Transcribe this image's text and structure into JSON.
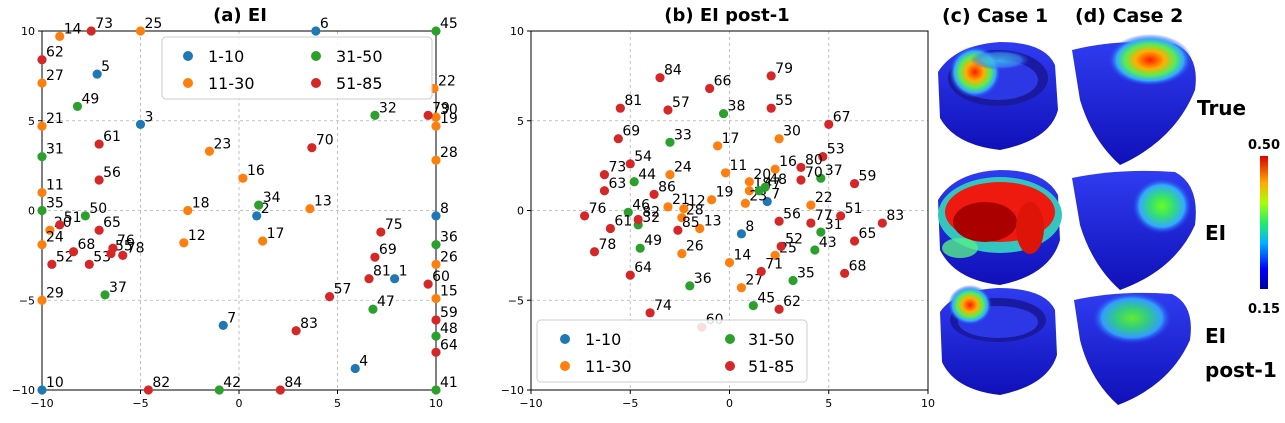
{
  "chart_data": [
    {
      "type": "scatter",
      "title": "(a) EI",
      "xlim": [
        -10,
        10
      ],
      "ylim": [
        -10,
        10
      ],
      "xticks": [
        -10,
        -5,
        0,
        5,
        10
      ],
      "yticks": [
        -10,
        -5,
        0,
        5,
        10
      ],
      "grid": true,
      "legend": {
        "placement": "top-right",
        "items": [
          {
            "label": "1-10",
            "color": "#1f77b4"
          },
          {
            "label": "11-30",
            "color": "#ff7f0e"
          },
          {
            "label": "31-50",
            "color": "#2ca02c"
          },
          {
            "label": "51-85",
            "color": "#d62728"
          }
        ]
      },
      "points": [
        {
          "id": "1",
          "x": 7.9,
          "y": -3.8
        },
        {
          "id": "2",
          "x": 0.9,
          "y": -0.3
        },
        {
          "id": "3",
          "x": -5.0,
          "y": 4.8
        },
        {
          "id": "4",
          "x": 5.9,
          "y": -8.8
        },
        {
          "id": "5",
          "x": -7.2,
          "y": 7.6
        },
        {
          "id": "6",
          "x": 3.9,
          "y": 10.0
        },
        {
          "id": "7",
          "x": -0.8,
          "y": -6.4
        },
        {
          "id": "8",
          "x": 10.0,
          "y": -0.3
        },
        {
          "id": "10",
          "x": -10.0,
          "y": -10.0
        },
        {
          "id": "11",
          "x": -10.0,
          "y": 1.0
        },
        {
          "id": "12",
          "x": -2.8,
          "y": -1.8
        },
        {
          "id": "13",
          "x": 3.6,
          "y": 0.1
        },
        {
          "id": "14",
          "x": -9.1,
          "y": 9.7
        },
        {
          "id": "15",
          "x": 10.0,
          "y": -4.9
        },
        {
          "id": "16",
          "x": 0.2,
          "y": 1.8
        },
        {
          "id": "17",
          "x": 1.2,
          "y": -1.7
        },
        {
          "id": "18",
          "x": -2.6,
          "y": 0.0
        },
        {
          "id": "19",
          "x": 10.0,
          "y": 4.7
        },
        {
          "id": "20",
          "x": -9.6,
          "y": -1.1
        },
        {
          "id": "21",
          "x": -10.0,
          "y": 4.7
        },
        {
          "id": "22",
          "x": 9.9,
          "y": 6.8
        },
        {
          "id": "23",
          "x": -1.5,
          "y": 3.3
        },
        {
          "id": "24",
          "x": -10.0,
          "y": -1.9
        },
        {
          "id": "25",
          "x": -5.0,
          "y": 10.0
        },
        {
          "id": "26",
          "x": 10.0,
          "y": -3.0
        },
        {
          "id": "27",
          "x": -10.0,
          "y": 7.1
        },
        {
          "id": "28",
          "x": 10.0,
          "y": 2.8
        },
        {
          "id": "29",
          "x": -10.0,
          "y": -5.0
        },
        {
          "id": "30",
          "x": 10.0,
          "y": 5.2
        },
        {
          "id": "31",
          "x": -10.0,
          "y": 3.0
        },
        {
          "id": "32",
          "x": 6.9,
          "y": 5.3
        },
        {
          "id": "34",
          "x": 1.0,
          "y": 0.3
        },
        {
          "id": "35",
          "x": -10.0,
          "y": 0.0
        },
        {
          "id": "36",
          "x": 10.0,
          "y": -1.9
        },
        {
          "id": "37",
          "x": -6.8,
          "y": -4.7
        },
        {
          "id": "41",
          "x": 10.0,
          "y": -10.0
        },
        {
          "id": "42",
          "x": -1.0,
          "y": -10.0
        },
        {
          "id": "45",
          "x": 10.0,
          "y": 10.0
        },
        {
          "id": "47",
          "x": 6.8,
          "y": -5.5
        },
        {
          "id": "48",
          "x": 10.0,
          "y": -7.0
        },
        {
          "id": "49",
          "x": -8.2,
          "y": 5.8
        },
        {
          "id": "50",
          "x": -7.8,
          "y": -0.3
        },
        {
          "id": "51",
          "x": -9.1,
          "y": -0.8
        },
        {
          "id": "52",
          "x": -9.5,
          "y": -3.0
        },
        {
          "id": "53",
          "x": -7.6,
          "y": -3.0
        },
        {
          "id": "55",
          "x": -6.5,
          "y": -2.4
        },
        {
          "id": "56",
          "x": -7.1,
          "y": 1.7
        },
        {
          "id": "57",
          "x": 4.6,
          "y": -4.8
        },
        {
          "id": "59",
          "x": 10.0,
          "y": -6.1
        },
        {
          "id": "60",
          "x": 9.6,
          "y": -4.1
        },
        {
          "id": "61",
          "x": -7.1,
          "y": 3.7
        },
        {
          "id": "62",
          "x": -10.0,
          "y": 8.4
        },
        {
          "id": "64",
          "x": 10.0,
          "y": -7.9
        },
        {
          "id": "65",
          "x": -7.1,
          "y": -1.1
        },
        {
          "id": "68",
          "x": -8.4,
          "y": -2.3
        },
        {
          "id": "69",
          "x": 6.9,
          "y": -2.6
        },
        {
          "id": "70",
          "x": 3.7,
          "y": 3.5
        },
        {
          "id": "73",
          "x": -7.5,
          "y": 10.0
        },
        {
          "id": "75",
          "x": 7.2,
          "y": -1.2
        },
        {
          "id": "76",
          "x": -6.4,
          "y": -2.1
        },
        {
          "id": "78",
          "x": -5.9,
          "y": -2.5
        },
        {
          "id": "79",
          "x": 9.6,
          "y": 5.3
        },
        {
          "id": "81",
          "x": 6.6,
          "y": -3.8
        },
        {
          "id": "82",
          "x": -4.6,
          "y": -10.0
        },
        {
          "id": "83",
          "x": 2.9,
          "y": -6.7
        },
        {
          "id": "84",
          "x": 2.1,
          "y": -10.0
        }
      ]
    },
    {
      "type": "scatter",
      "title": "(b) EI post-1",
      "xlim": [
        -10,
        10
      ],
      "ylim": [
        -10,
        10
      ],
      "xticks": [
        -10,
        -5,
        0,
        5,
        10
      ],
      "yticks": [
        -10,
        -5,
        0,
        5,
        10
      ],
      "grid": true,
      "legend": {
        "placement": "bottom-left",
        "items": [
          {
            "label": "1-10",
            "color": "#1f77b4"
          },
          {
            "label": "11-30",
            "color": "#ff7f0e"
          },
          {
            "label": "31-50",
            "color": "#2ca02c"
          },
          {
            "label": "51-85",
            "color": "#d62728"
          }
        ]
      },
      "points": [
        {
          "id": "7",
          "x": 1.9,
          "y": 0.5
        },
        {
          "id": "8",
          "x": 0.6,
          "y": -1.3
        },
        {
          "id": "11",
          "x": -0.2,
          "y": 2.1
        },
        {
          "id": "12",
          "x": -2.3,
          "y": 0.1
        },
        {
          "id": "13",
          "x": -1.5,
          "y": -1.0
        },
        {
          "id": "14",
          "x": 0.0,
          "y": -2.9
        },
        {
          "id": "16",
          "x": 2.3,
          "y": 2.3
        },
        {
          "id": "17",
          "x": -0.6,
          "y": 3.6
        },
        {
          "id": "18",
          "x": 1.0,
          "y": 1.1
        },
        {
          "id": "19",
          "x": -0.9,
          "y": 0.6
        },
        {
          "id": "20",
          "x": 1.0,
          "y": 1.6
        },
        {
          "id": "21",
          "x": -3.1,
          "y": 0.2
        },
        {
          "id": "22",
          "x": 4.1,
          "y": 0.3
        },
        {
          "id": "23",
          "x": 0.8,
          "y": 0.4
        },
        {
          "id": "24",
          "x": -3.0,
          "y": 2.0
        },
        {
          "id": "25",
          "x": 2.3,
          "y": -2.5
        },
        {
          "id": "26",
          "x": -2.4,
          "y": -2.4
        },
        {
          "id": "27",
          "x": 0.6,
          "y": -4.3
        },
        {
          "id": "28",
          "x": -2.4,
          "y": -0.4
        },
        {
          "id": "30",
          "x": 2.5,
          "y": 4.0
        },
        {
          "id": "31",
          "x": 4.6,
          "y": -1.2
        },
        {
          "id": "32",
          "x": -4.6,
          "y": -0.8
        },
        {
          "id": "33",
          "x": -3.0,
          "y": 3.8
        },
        {
          "id": "35",
          "x": 3.2,
          "y": -3.9
        },
        {
          "id": "36",
          "x": -2.0,
          "y": -4.2
        },
        {
          "id": "37",
          "x": 4.6,
          "y": 1.8
        },
        {
          "id": "38",
          "x": -0.3,
          "y": 5.4
        },
        {
          "id": "43",
          "x": 4.3,
          "y": -2.2
        },
        {
          "id": "44",
          "x": -4.8,
          "y": 1.6
        },
        {
          "id": "45",
          "x": 1.2,
          "y": -5.3
        },
        {
          "id": "46",
          "x": -5.1,
          "y": -0.1
        },
        {
          "id": "47",
          "x": 1.5,
          "y": 1.1
        },
        {
          "id": "48",
          "x": 1.8,
          "y": 1.3
        },
        {
          "id": "49",
          "x": -4.5,
          "y": -2.1
        },
        {
          "id": "51",
          "x": 5.6,
          "y": -0.3
        },
        {
          "id": "52",
          "x": 2.6,
          "y": -2.0
        },
        {
          "id": "53",
          "x": 4.7,
          "y": 3.0
        },
        {
          "id": "54",
          "x": -5.0,
          "y": 2.6
        },
        {
          "id": "55",
          "x": 2.1,
          "y": 5.7
        },
        {
          "id": "56",
          "x": 2.5,
          "y": -0.6
        },
        {
          "id": "57",
          "x": -3.1,
          "y": 5.6
        },
        {
          "id": "59",
          "x": 6.3,
          "y": 1.5
        },
        {
          "id": "60",
          "x": -1.4,
          "y": -6.5
        },
        {
          "id": "61",
          "x": -6.0,
          "y": -1.0
        },
        {
          "id": "62",
          "x": 2.5,
          "y": -5.5
        },
        {
          "id": "63",
          "x": -6.3,
          "y": 1.1
        },
        {
          "id": "64",
          "x": -5.0,
          "y": -3.6
        },
        {
          "id": "65",
          "x": 6.3,
          "y": -1.7
        },
        {
          "id": "66",
          "x": -1.0,
          "y": 6.8
        },
        {
          "id": "67",
          "x": 5.0,
          "y": 4.8
        },
        {
          "id": "68",
          "x": 5.8,
          "y": -3.5
        },
        {
          "id": "69",
          "x": -5.6,
          "y": 4.0
        },
        {
          "id": "70",
          "x": 3.6,
          "y": 1.7
        },
        {
          "id": "71",
          "x": 1.6,
          "y": -3.4
        },
        {
          "id": "73",
          "x": -6.3,
          "y": 2.0
        },
        {
          "id": "74",
          "x": -4.0,
          "y": -5.7
        },
        {
          "id": "76",
          "x": -7.3,
          "y": -0.3
        },
        {
          "id": "77",
          "x": 4.1,
          "y": -0.7
        },
        {
          "id": "78",
          "x": -6.8,
          "y": -2.3
        },
        {
          "id": "79",
          "x": 2.1,
          "y": 7.5
        },
        {
          "id": "80",
          "x": 3.6,
          "y": 2.4
        },
        {
          "id": "81",
          "x": -5.5,
          "y": 5.7
        },
        {
          "id": "82",
          "x": -4.6,
          "y": -0.5
        },
        {
          "id": "83",
          "x": 7.7,
          "y": -0.7
        },
        {
          "id": "84",
          "x": -3.5,
          "y": 7.4
        },
        {
          "id": "85",
          "x": -2.6,
          "y": -1.1
        },
        {
          "id": "86",
          "x": -3.8,
          "y": 0.9
        }
      ]
    }
  ],
  "figure": {
    "case_titles": [
      "(c) Case 1",
      "(d) Case 2"
    ],
    "row_labels": [
      "True",
      "EI",
      "EI",
      "post-1"
    ],
    "colorbar": {
      "max_label": "0.50",
      "min_label": "0.15"
    }
  }
}
